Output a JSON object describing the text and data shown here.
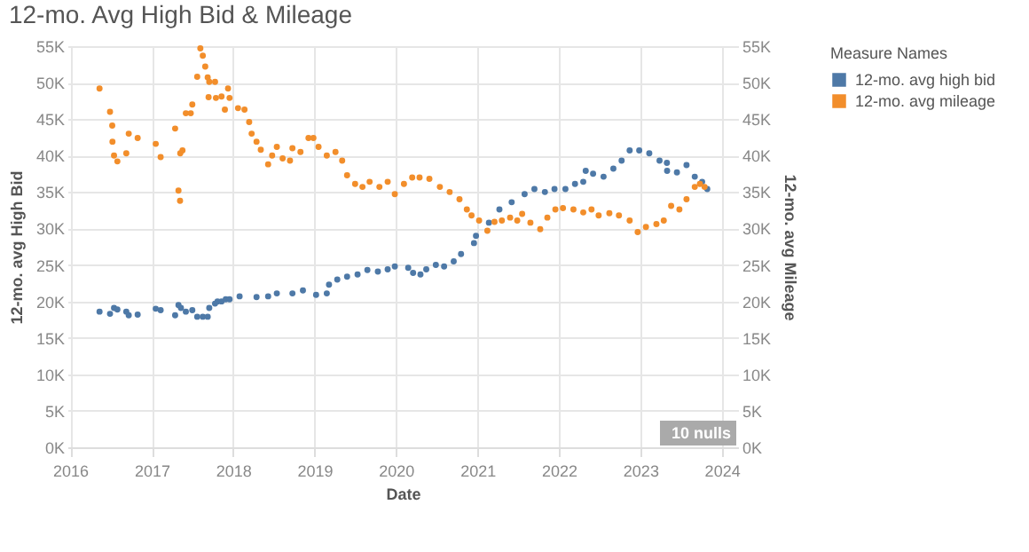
{
  "chart_data": {
    "type": "scatter",
    "title": "12-mo. Avg High Bid & Mileage",
    "xlabel": "Date",
    "ylabel": "12-mo. avg High Bid",
    "y2label": "12-mo. avg Mileage",
    "legend_title": "Measure Names",
    "legend": "top right",
    "grid": true,
    "marker": "circle",
    "annotations": [
      "10 nulls"
    ],
    "xlim": [
      "2015-12-20",
      "2024-03-14"
    ],
    "xticks": [
      "2016",
      "2017",
      "2018",
      "2019",
      "2020",
      "2021",
      "2022",
      "2023",
      "2024"
    ],
    "ylim": [
      0,
      55000
    ],
    "yticks": [
      {
        "value": 0,
        "label": "0K"
      },
      {
        "value": 5000,
        "label": "5K"
      },
      {
        "value": 10000,
        "label": "10K"
      },
      {
        "value": 15000,
        "label": "15K"
      },
      {
        "value": 20000,
        "label": "20K"
      },
      {
        "value": 25000,
        "label": "25K"
      },
      {
        "value": 30000,
        "label": "30K"
      },
      {
        "value": 35000,
        "label": "35K"
      },
      {
        "value": 40000,
        "label": "40K"
      },
      {
        "value": 45000,
        "label": "45K"
      },
      {
        "value": 50000,
        "label": "50K"
      },
      {
        "value": 55000,
        "label": "55K"
      }
    ],
    "y2lim": [
      0,
      55000
    ],
    "y2ticks": [
      {
        "value": 0,
        "label": "0K"
      },
      {
        "value": 5000,
        "label": "5K"
      },
      {
        "value": 10000,
        "label": "10K"
      },
      {
        "value": 15000,
        "label": "15K"
      },
      {
        "value": 20000,
        "label": "20K"
      },
      {
        "value": 25000,
        "label": "25K"
      },
      {
        "value": 30000,
        "label": "30K"
      },
      {
        "value": 35000,
        "label": "35K"
      },
      {
        "value": 40000,
        "label": "40K"
      },
      {
        "value": 45000,
        "label": "45K"
      },
      {
        "value": 50000,
        "label": "50K"
      },
      {
        "value": 55000,
        "label": "55K"
      }
    ],
    "series": [
      {
        "name": "12-mo. avg high bid",
        "color": "#4e79a7",
        "x": [
          "2016-05-12",
          "2016-06-28",
          "2016-07-16",
          "2016-07-31",
          "2016-09-09",
          "2016-09-20",
          "2016-10-30",
          "2017-01-19",
          "2017-02-10",
          "2017-04-16",
          "2017-05-01",
          "2017-05-12",
          "2017-06-03",
          "2017-07-02",
          "2017-07-24",
          "2017-08-18",
          "2017-09-09",
          "2017-09-16",
          "2017-10-12",
          "2017-10-23",
          "2017-11-10",
          "2017-11-29",
          "2017-12-16",
          "2018-01-30",
          "2018-04-16",
          "2018-06-07",
          "2018-07-16",
          "2018-09-24",
          "2018-11-10",
          "2019-01-08",
          "2019-02-25",
          "2019-03-07",
          "2019-04-13",
          "2019-05-27",
          "2019-07-13",
          "2019-08-26",
          "2019-10-12",
          "2019-11-25",
          "2019-12-27",
          "2020-02-25",
          "2020-03-18",
          "2020-04-20",
          "2020-05-16",
          "2020-06-28",
          "2020-08-04",
          "2020-09-16",
          "2020-10-19",
          "2020-12-16",
          "2020-12-25",
          "2021-02-21",
          "2021-04-09",
          "2021-06-03",
          "2021-07-31",
          "2021-09-13",
          "2021-10-30",
          "2021-12-12",
          "2022-01-30",
          "2022-03-14",
          "2022-04-20",
          "2022-05-01",
          "2022-06-03",
          "2022-07-20",
          "2022-09-02",
          "2022-10-09",
          "2022-11-14",
          "2022-12-27",
          "2023-02-10",
          "2023-03-28",
          "2023-04-30",
          "2023-05-01",
          "2023-06-14",
          "2023-07-27",
          "2023-09-02",
          "2023-10-05",
          "2023-10-28"
        ],
        "values": [
          18600,
          18300,
          19100,
          18900,
          18600,
          18100,
          18200,
          19000,
          18800,
          18100,
          19500,
          19100,
          18600,
          18800,
          17900,
          17900,
          17900,
          19100,
          19700,
          20000,
          20000,
          20300,
          20300,
          20700,
          20600,
          20700,
          21100,
          21100,
          21500,
          20900,
          21100,
          22300,
          23000,
          23400,
          23700,
          24300,
          24100,
          24400,
          24800,
          24600,
          23900,
          23700,
          24400,
          25000,
          24800,
          25500,
          26500,
          28000,
          29000,
          30800,
          32600,
          33600,
          34700,
          35400,
          35000,
          35400,
          35400,
          36100,
          36400,
          37900,
          37500,
          37100,
          38200,
          39300,
          40700,
          40700,
          40300,
          39300,
          39000,
          37900,
          37700,
          38700,
          37100,
          36400,
          35400
        ]
      },
      {
        "name": "12-mo. avg mileage",
        "color": "#f28e2b",
        "axis": "y2",
        "x": [
          "2016-05-12",
          "2016-06-28",
          "2016-07-08",
          "2016-07-09",
          "2016-07-16",
          "2016-07-31",
          "2016-09-09",
          "2016-09-20",
          "2016-10-30",
          "2017-01-19",
          "2017-02-10",
          "2017-04-16",
          "2017-05-01",
          "2017-05-08",
          "2017-05-09",
          "2017-05-19",
          "2017-06-03",
          "2017-06-25",
          "2017-07-02",
          "2017-07-24",
          "2017-08-07",
          "2017-08-18",
          "2017-08-29",
          "2017-09-09",
          "2017-09-16",
          "2017-09-13",
          "2017-10-12",
          "2017-10-16",
          "2017-11-10",
          "2017-11-25",
          "2017-12-09",
          "2017-12-16",
          "2018-01-23",
          "2018-02-21",
          "2018-03-14",
          "2018-03-25",
          "2018-04-16",
          "2018-05-05",
          "2018-06-07",
          "2018-06-25",
          "2018-07-16",
          "2018-08-11",
          "2018-09-13",
          "2018-09-24",
          "2018-10-30",
          "2018-12-05",
          "2018-12-27",
          "2019-01-19",
          "2019-02-25",
          "2019-04-05",
          "2019-05-05",
          "2019-05-27",
          "2019-07-02",
          "2019-08-04",
          "2019-09-05",
          "2019-10-19",
          "2019-11-25",
          "2019-12-27",
          "2020-02-06",
          "2020-03-14",
          "2020-04-16",
          "2020-05-30",
          "2020-07-16",
          "2020-08-29",
          "2020-10-12",
          "2020-11-14",
          "2020-12-05",
          "2021-01-08",
          "2021-02-14",
          "2021-03-18",
          "2021-04-20",
          "2021-05-27",
          "2021-06-28",
          "2021-07-20",
          "2021-08-26",
          "2021-10-09",
          "2021-11-10",
          "2021-12-16",
          "2022-01-19",
          "2022-03-07",
          "2022-04-20",
          "2022-05-27",
          "2022-06-28",
          "2022-08-15",
          "2022-09-27",
          "2022-11-14",
          "2022-12-20",
          "2023-01-26",
          "2023-03-14",
          "2023-04-16",
          "2023-05-19",
          "2023-06-25",
          "2023-07-27",
          "2023-09-02",
          "2023-09-25",
          "2023-10-16"
        ],
        "values": [
          49200,
          46000,
          44100,
          41900,
          40000,
          39200,
          40300,
          43000,
          42400,
          41600,
          39800,
          43700,
          35200,
          33800,
          40300,
          40700,
          45800,
          45800,
          47000,
          50800,
          54700,
          53700,
          52200,
          50700,
          50100,
          48000,
          50100,
          47900,
          48100,
          46300,
          49200,
          47900,
          46500,
          46300,
          44600,
          43000,
          41900,
          40800,
          38800,
          40000,
          41200,
          39600,
          39300,
          41000,
          40500,
          42400,
          42400,
          41200,
          40000,
          40500,
          39300,
          37300,
          36100,
          35700,
          36400,
          35700,
          36400,
          34700,
          36100,
          37000,
          37000,
          36800,
          35700,
          35000,
          34000,
          32600,
          31800,
          31100,
          29700,
          30900,
          31100,
          31500,
          31100,
          32000,
          30800,
          29900,
          31500,
          32600,
          32800,
          32600,
          32200,
          32600,
          31800,
          32100,
          31800,
          31100,
          29500,
          30200,
          30600,
          31100,
          33100,
          32600,
          34000,
          35700,
          36100,
          35700
        ]
      }
    ]
  }
}
